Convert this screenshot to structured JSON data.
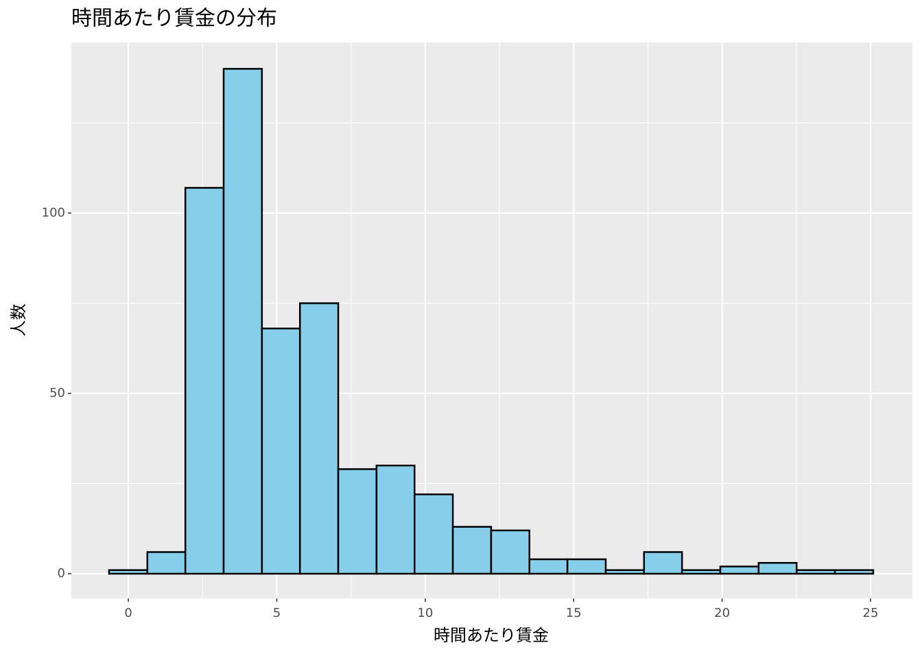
{
  "chart_data": {
    "type": "histogram",
    "title": "時間あたり賃金の分布",
    "x_label": "時間あたり賃金",
    "y_label": "人数",
    "bins": [
      -0.65,
      0.64,
      1.92,
      3.21,
      4.5,
      5.78,
      7.07,
      8.36,
      9.64,
      10.93,
      12.22,
      13.51,
      14.79,
      16.08,
      17.37,
      18.65,
      19.94,
      21.23,
      22.51,
      23.8,
      25.09
    ],
    "values": [
      1,
      6,
      107,
      140,
      68,
      75,
      29,
      30,
      22,
      13,
      12,
      4,
      4,
      1,
      6,
      1,
      2,
      3,
      1,
      1
    ],
    "color": "#87ceeb",
    "edge_color": "#000000",
    "xlim": [
      -1.92,
      26.41
    ],
    "ylim": [
      -6.84,
      147.3
    ],
    "xticks": [
      0,
      5,
      10,
      15,
      20,
      25
    ],
    "yticks": [
      0,
      50,
      100
    ],
    "grid": true
  }
}
